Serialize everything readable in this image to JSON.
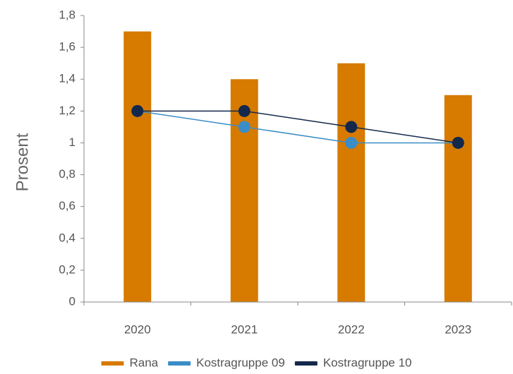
{
  "chart_data": {
    "type": "bar",
    "categories": [
      "2020",
      "2021",
      "2022",
      "2023"
    ],
    "ylabel": "Prosent",
    "ylim": [
      0,
      1.8
    ],
    "yticks": [
      "0",
      "0,2",
      "0,4",
      "0,6",
      "0,8",
      "1",
      "1,2",
      "1,4",
      "1,6",
      "1,8"
    ],
    "grid": false,
    "legend_position": "bottom",
    "series": [
      {
        "name": "Rana",
        "kind": "bar",
        "color": "#D77A00",
        "values": [
          1.7,
          1.4,
          1.5,
          1.3
        ]
      },
      {
        "name": "Kostragruppe 09",
        "kind": "line",
        "color": "#3A8DC6",
        "values": [
          1.2,
          1.1,
          1.0,
          1.0
        ]
      },
      {
        "name": "Kostragruppe 10",
        "kind": "line",
        "color": "#14284B",
        "values": [
          1.2,
          1.2,
          1.1,
          1.0
        ]
      }
    ]
  }
}
